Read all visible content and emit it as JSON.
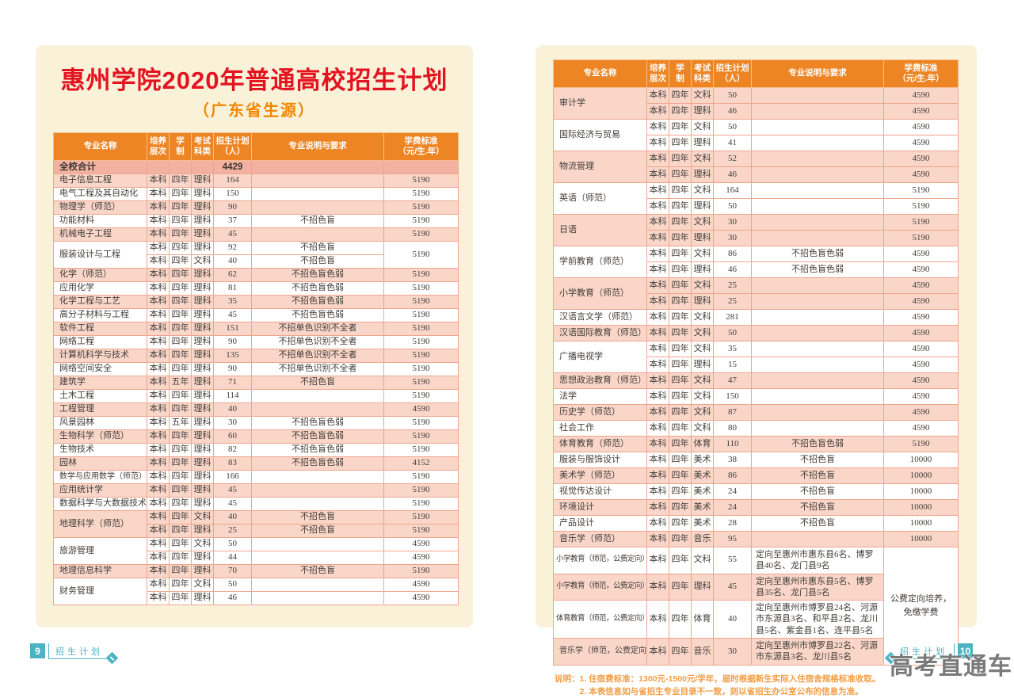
{
  "document": {
    "title": "惠州学院2020年普通高校招生计划",
    "subtitle": "（广东省生源）",
    "watermark": "高考直通车",
    "footer_left": {
      "page_number": "9",
      "label": "招生计划"
    },
    "footer_right": {
      "page_number": "10",
      "label": "招生计划"
    },
    "notes": {
      "prefix": "说明：",
      "lines": [
        "1. 住宿费标准：1300元-1500元/学年，届时根据新生实际入住宿舍规格标准收取。",
        "2. 本表信息如与省招生专业目录不一致，则以省招生办公室公布的信息为准。"
      ]
    },
    "colors": {
      "page_background": "#f9f2d9",
      "header_orange": "#ee8524",
      "row_pink": "#f9d6c8",
      "summary_pink": "#f3b2a1",
      "border_salmon": "#efa58d",
      "title_red": "#e31420",
      "subtitle_orange": "#f28600",
      "notes_orange": "#f39c42",
      "footer_teal": "#4cb2c4",
      "watermark_gray": "#686868"
    }
  },
  "table_headers": [
    [
      "专业名称"
    ],
    [
      "培养",
      "层次"
    ],
    [
      "学",
      "制"
    ],
    [
      "考试",
      "科类"
    ],
    [
      "招生计划",
      "（人）"
    ],
    [
      "专业说明与要求"
    ],
    [
      "学费标准",
      "（元/生.年）"
    ]
  ],
  "left_table": {
    "summary": {
      "name": "全校合计",
      "count": "4429"
    },
    "groups": [
      {
        "name": "电子信息工程",
        "shade": "pink",
        "rows": [
          {
            "level": "本科",
            "years": "四年",
            "cat": "理科",
            "count": "164",
            "note": "",
            "fee": "5190"
          }
        ]
      },
      {
        "name": "电气工程及其自动化",
        "shade": "white",
        "rows": [
          {
            "level": "本科",
            "years": "四年",
            "cat": "理科",
            "count": "150",
            "note": "",
            "fee": "5190"
          }
        ]
      },
      {
        "name": "物理学（师范）",
        "shade": "pink",
        "rows": [
          {
            "level": "本科",
            "years": "四年",
            "cat": "理科",
            "count": "90",
            "note": "",
            "fee": "5190"
          }
        ]
      },
      {
        "name": "功能材料",
        "shade": "white",
        "rows": [
          {
            "level": "本科",
            "years": "四年",
            "cat": "理科",
            "count": "37",
            "note": "不招色盲",
            "fee": "5190"
          }
        ]
      },
      {
        "name": "机械电子工程",
        "shade": "pink",
        "rows": [
          {
            "level": "本科",
            "years": "四年",
            "cat": "理科",
            "count": "45",
            "note": "",
            "fee": "5190"
          }
        ]
      },
      {
        "name": "服装设计与工程",
        "shade": "white",
        "rows": [
          {
            "level": "本科",
            "years": "四年",
            "cat": "理科",
            "count": "92",
            "note": "不招色盲",
            "fee": "5190",
            "fee_rowspan": 2
          },
          {
            "level": "本科",
            "years": "四年",
            "cat": "文科",
            "count": "40",
            "note": "不招色盲",
            "fee": null
          }
        ]
      },
      {
        "name": "化学（师范）",
        "shade": "pink",
        "rows": [
          {
            "level": "本科",
            "years": "四年",
            "cat": "理科",
            "count": "62",
            "note": "不招色盲色弱",
            "fee": "5190"
          }
        ]
      },
      {
        "name": "应用化学",
        "shade": "white",
        "rows": [
          {
            "level": "本科",
            "years": "四年",
            "cat": "理科",
            "count": "81",
            "note": "不招色盲色弱",
            "fee": "5190"
          }
        ]
      },
      {
        "name": "化学工程与工艺",
        "shade": "pink",
        "rows": [
          {
            "level": "本科",
            "years": "四年",
            "cat": "理科",
            "count": "35",
            "note": "不招色盲色弱",
            "fee": "5190"
          }
        ]
      },
      {
        "name": "高分子材料与工程",
        "shade": "white",
        "rows": [
          {
            "level": "本科",
            "years": "四年",
            "cat": "理科",
            "count": "45",
            "note": "不招色盲色弱",
            "fee": "5190"
          }
        ]
      },
      {
        "name": "软件工程",
        "shade": "pink",
        "rows": [
          {
            "level": "本科",
            "years": "四年",
            "cat": "理科",
            "count": "151",
            "note": "不招单色识别不全者",
            "fee": "5190"
          }
        ]
      },
      {
        "name": "网络工程",
        "shade": "white",
        "rows": [
          {
            "level": "本科",
            "years": "四年",
            "cat": "理科",
            "count": "90",
            "note": "不招单色识别不全者",
            "fee": "5190"
          }
        ]
      },
      {
        "name": "计算机科学与技术",
        "shade": "pink",
        "rows": [
          {
            "level": "本科",
            "years": "四年",
            "cat": "理科",
            "count": "135",
            "note": "不招单色识别不全者",
            "fee": "5190"
          }
        ]
      },
      {
        "name": "网络空间安全",
        "shade": "white",
        "rows": [
          {
            "level": "本科",
            "years": "四年",
            "cat": "理科",
            "count": "90",
            "note": "不招单色识别不全者",
            "fee": "5190"
          }
        ]
      },
      {
        "name": "建筑学",
        "shade": "pink",
        "rows": [
          {
            "level": "本科",
            "years": "五年",
            "cat": "理科",
            "count": "71",
            "note": "不招色盲",
            "fee": "5190"
          }
        ]
      },
      {
        "name": "土木工程",
        "shade": "white",
        "rows": [
          {
            "level": "本科",
            "years": "四年",
            "cat": "理科",
            "count": "114",
            "note": "",
            "fee": "5190"
          }
        ]
      },
      {
        "name": "工程管理",
        "shade": "pink",
        "rows": [
          {
            "level": "本科",
            "years": "四年",
            "cat": "理科",
            "count": "40",
            "note": "",
            "fee": "4590"
          }
        ]
      },
      {
        "name": "风景园林",
        "shade": "white",
        "rows": [
          {
            "level": "本科",
            "years": "五年",
            "cat": "理科",
            "count": "30",
            "note": "不招色盲色弱",
            "fee": "5190"
          }
        ]
      },
      {
        "name": "生物科学（师范）",
        "shade": "pink",
        "rows": [
          {
            "level": "本科",
            "years": "四年",
            "cat": "理科",
            "count": "60",
            "note": "不招色盲色弱",
            "fee": "5190"
          }
        ]
      },
      {
        "name": "生物技术",
        "shade": "white",
        "rows": [
          {
            "level": "本科",
            "years": "四年",
            "cat": "理科",
            "count": "82",
            "note": "不招色盲色弱",
            "fee": "5190"
          }
        ]
      },
      {
        "name": "园林",
        "shade": "pink",
        "rows": [
          {
            "level": "本科",
            "years": "四年",
            "cat": "理科",
            "count": "83",
            "note": "不招色盲色弱",
            "fee": "4152"
          }
        ]
      },
      {
        "name": "数学与应用数学（师范）",
        "shade": "white",
        "rows": [
          {
            "level": "本科",
            "years": "四年",
            "cat": "理科",
            "count": "166",
            "note": "",
            "fee": "5190"
          }
        ]
      },
      {
        "name": "应用统计学",
        "shade": "pink",
        "rows": [
          {
            "level": "本科",
            "years": "四年",
            "cat": "理科",
            "count": "45",
            "note": "",
            "fee": "5190"
          }
        ]
      },
      {
        "name": "数据科学与大数据技术",
        "shade": "white",
        "rows": [
          {
            "level": "本科",
            "years": "四年",
            "cat": "理科",
            "count": "45",
            "note": "",
            "fee": "5190"
          }
        ]
      },
      {
        "name": "地理科学（师范）",
        "shade": "pink",
        "rows": [
          {
            "level": "本科",
            "years": "四年",
            "cat": "文科",
            "count": "40",
            "note": "不招色盲",
            "fee": "5190"
          },
          {
            "level": "本科",
            "years": "四年",
            "cat": "理科",
            "count": "25",
            "note": "不招色盲",
            "fee": "5190"
          }
        ]
      },
      {
        "name": "旅游管理",
        "shade": "white",
        "rows": [
          {
            "level": "本科",
            "years": "四年",
            "cat": "文科",
            "count": "50",
            "note": "",
            "fee": "4590"
          },
          {
            "level": "本科",
            "years": "四年",
            "cat": "理科",
            "count": "44",
            "note": "",
            "fee": "4590"
          }
        ]
      },
      {
        "name": "地理信息科学",
        "shade": "pink",
        "rows": [
          {
            "level": "本科",
            "years": "四年",
            "cat": "理科",
            "count": "70",
            "note": "不招色盲",
            "fee": "5190"
          }
        ]
      },
      {
        "name": "财务管理",
        "shade": "white",
        "rows": [
          {
            "level": "本科",
            "years": "四年",
            "cat": "文科",
            "count": "50",
            "note": "",
            "fee": "4590"
          },
          {
            "level": "本科",
            "years": "四年",
            "cat": "理科",
            "count": "46",
            "note": "",
            "fee": "4590"
          }
        ]
      }
    ]
  },
  "right_table": {
    "summary": null,
    "groups": [
      {
        "name": "审计学",
        "shade": "pink",
        "rows": [
          {
            "level": "本科",
            "years": "四年",
            "cat": "文科",
            "count": "50",
            "note": "",
            "fee": "4590"
          },
          {
            "level": "本科",
            "years": "四年",
            "cat": "理科",
            "count": "46",
            "note": "",
            "fee": "4590"
          }
        ]
      },
      {
        "name": "国际经济与贸易",
        "shade": "white",
        "rows": [
          {
            "level": "本科",
            "years": "四年",
            "cat": "文科",
            "count": "50",
            "note": "",
            "fee": "4590"
          },
          {
            "level": "本科",
            "years": "四年",
            "cat": "理科",
            "count": "41",
            "note": "",
            "fee": "4590"
          }
        ]
      },
      {
        "name": "物流管理",
        "shade": "pink",
        "rows": [
          {
            "level": "本科",
            "years": "四年",
            "cat": "文科",
            "count": "52",
            "note": "",
            "fee": "4590"
          },
          {
            "level": "本科",
            "years": "四年",
            "cat": "理科",
            "count": "46",
            "note": "",
            "fee": "4590"
          }
        ]
      },
      {
        "name": "英语（师范）",
        "shade": "white",
        "rows": [
          {
            "level": "本科",
            "years": "四年",
            "cat": "文科",
            "count": "164",
            "note": "",
            "fee": "5190"
          },
          {
            "level": "本科",
            "years": "四年",
            "cat": "理科",
            "count": "50",
            "note": "",
            "fee": "5190"
          }
        ]
      },
      {
        "name": "日语",
        "shade": "pink",
        "rows": [
          {
            "level": "本科",
            "years": "四年",
            "cat": "文科",
            "count": "30",
            "note": "",
            "fee": "5190"
          },
          {
            "level": "本科",
            "years": "四年",
            "cat": "理科",
            "count": "30",
            "note": "",
            "fee": "5190"
          }
        ]
      },
      {
        "name": "学前教育（师范）",
        "shade": "white",
        "rows": [
          {
            "level": "本科",
            "years": "四年",
            "cat": "文科",
            "count": "86",
            "note": "不招色盲色弱",
            "fee": "4590"
          },
          {
            "level": "本科",
            "years": "四年",
            "cat": "理科",
            "count": "46",
            "note": "不招色盲色弱",
            "fee": "4590"
          }
        ]
      },
      {
        "name": "小学教育（师范）",
        "shade": "pink",
        "rows": [
          {
            "level": "本科",
            "years": "四年",
            "cat": "文科",
            "count": "25",
            "note": "",
            "fee": "4590"
          },
          {
            "level": "本科",
            "years": "四年",
            "cat": "理科",
            "count": "25",
            "note": "",
            "fee": "4590"
          }
        ]
      },
      {
        "name": "汉语言文学（师范）",
        "shade": "white",
        "rows": [
          {
            "level": "本科",
            "years": "四年",
            "cat": "文科",
            "count": "281",
            "note": "",
            "fee": "4590"
          }
        ]
      },
      {
        "name": "汉语国际教育（师范）",
        "shade": "pink",
        "rows": [
          {
            "level": "本科",
            "years": "四年",
            "cat": "文科",
            "count": "50",
            "note": "",
            "fee": "4590"
          }
        ]
      },
      {
        "name": "广播电视学",
        "shade": "white",
        "rows": [
          {
            "level": "本科",
            "years": "四年",
            "cat": "文科",
            "count": "35",
            "note": "",
            "fee": "4590"
          },
          {
            "level": "本科",
            "years": "四年",
            "cat": "理科",
            "count": "15",
            "note": "",
            "fee": "4590"
          }
        ]
      },
      {
        "name": "思想政治教育（师范）",
        "shade": "pink",
        "rows": [
          {
            "level": "本科",
            "years": "四年",
            "cat": "文科",
            "count": "47",
            "note": "",
            "fee": "4590"
          }
        ]
      },
      {
        "name": "法学",
        "shade": "white",
        "rows": [
          {
            "level": "本科",
            "years": "四年",
            "cat": "文科",
            "count": "150",
            "note": "",
            "fee": "4590"
          }
        ]
      },
      {
        "name": "历史学（师范）",
        "shade": "pink",
        "rows": [
          {
            "level": "本科",
            "years": "四年",
            "cat": "文科",
            "count": "87",
            "note": "",
            "fee": "4590"
          }
        ]
      },
      {
        "name": "社会工作",
        "shade": "white",
        "rows": [
          {
            "level": "本科",
            "years": "四年",
            "cat": "文科",
            "count": "80",
            "note": "",
            "fee": "4590"
          }
        ]
      },
      {
        "name": "体育教育（师范）",
        "shade": "pink",
        "rows": [
          {
            "level": "本科",
            "years": "四年",
            "cat": "体育",
            "count": "110",
            "note": "不招色盲色弱",
            "fee": "5190"
          }
        ]
      },
      {
        "name": "服装与服饰设计",
        "shade": "white",
        "rows": [
          {
            "level": "本科",
            "years": "四年",
            "cat": "美术",
            "count": "38",
            "note": "不招色盲",
            "fee": "10000"
          }
        ]
      },
      {
        "name": "美术学（师范）",
        "shade": "pink",
        "rows": [
          {
            "level": "本科",
            "years": "四年",
            "cat": "美术",
            "count": "86",
            "note": "不招色盲",
            "fee": "10000"
          }
        ]
      },
      {
        "name": "视觉传达设计",
        "shade": "white",
        "rows": [
          {
            "level": "本科",
            "years": "四年",
            "cat": "美术",
            "count": "24",
            "note": "不招色盲",
            "fee": "10000"
          }
        ]
      },
      {
        "name": "环境设计",
        "shade": "pink",
        "rows": [
          {
            "level": "本科",
            "years": "四年",
            "cat": "美术",
            "count": "24",
            "note": "不招色盲",
            "fee": "10000"
          }
        ]
      },
      {
        "name": "产品设计",
        "shade": "white",
        "rows": [
          {
            "level": "本科",
            "years": "四年",
            "cat": "美术",
            "count": "28",
            "note": "不招色盲",
            "fee": "10000"
          }
        ]
      },
      {
        "name": "音乐学（师范）",
        "shade": "pink",
        "rows": [
          {
            "level": "本科",
            "years": "四年",
            "cat": "音乐",
            "count": "95",
            "note": "",
            "fee": "10000"
          }
        ]
      },
      {
        "name": "小学教育（师范，公费定向）",
        "shade": "white",
        "rows": [
          {
            "level": "本科",
            "years": "四年",
            "cat": "文科",
            "count": "55",
            "note": "定向至惠州市惠东县6名、博罗县40名、龙门县9名",
            "fee": "公费定向培养，免缴学费",
            "fee_rowspan": 4,
            "fee_merged": true
          }
        ]
      },
      {
        "name": "小学教育（师范，公费定向）",
        "shade": "pink",
        "rows": [
          {
            "level": "本科",
            "years": "四年",
            "cat": "理科",
            "count": "45",
            "note": "定向至惠州市惠东县5名、博罗县35名、龙门县5名",
            "fee": null
          }
        ]
      },
      {
        "name": "体育教育（师范，公费定向）",
        "shade": "white",
        "rows": [
          {
            "level": "本科",
            "years": "四年",
            "cat": "体育",
            "count": "40",
            "note": "定向至惠州市博罗县24名、河源市东源县3名、和平县2名、龙川县5名、紫金县1名、连平县5名",
            "fee": null
          }
        ]
      },
      {
        "name": "音乐学（师范，公费定向）",
        "shade": "pink",
        "rows": [
          {
            "level": "本科",
            "years": "四年",
            "cat": "音乐",
            "count": "30",
            "note": "定向至惠州市博罗县22名、河源市东源县3名、龙川县5名",
            "fee": null
          }
        ]
      }
    ]
  }
}
